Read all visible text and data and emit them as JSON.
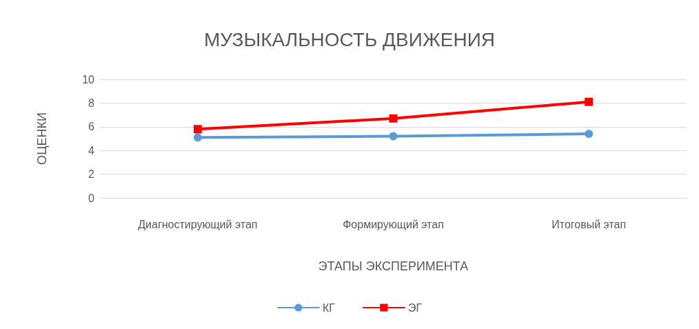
{
  "chart_data": {
    "type": "line",
    "title": "МУЗЫКАЛЬНОСТЬ ДВИЖЕНИЯ",
    "xlabel": "ЭТАПЫ ЭКСПЕРИМЕНТА",
    "ylabel": "ОЦЕНКИ",
    "categories": [
      "Диагностирующий этап",
      "Формирующий этап",
      "Итоговый этап"
    ],
    "series": [
      {
        "name": "КГ",
        "color": "#5b9bd5",
        "values": [
          5.1,
          5.2,
          5.4
        ],
        "marker": "circle"
      },
      {
        "name": "ЭГ",
        "color": "#ff0000",
        "values": [
          5.8,
          6.7,
          8.1
        ],
        "marker": "square"
      }
    ],
    "ylim": [
      0,
      10
    ],
    "yticks": [
      0,
      2,
      4,
      6,
      8,
      10
    ],
    "grid": "y",
    "legend": "bottom"
  }
}
